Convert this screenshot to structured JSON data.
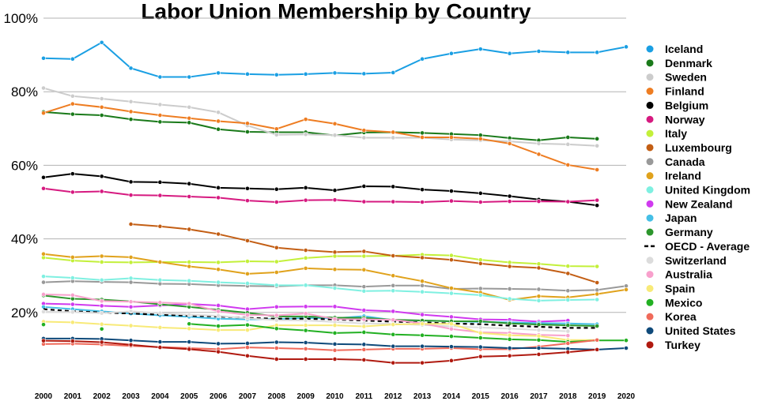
{
  "chart_data": {
    "type": "line",
    "title": "Labor Union Membership by Country",
    "xlabel": "",
    "ylabel": "",
    "x": [
      2000,
      2001,
      2002,
      2003,
      2004,
      2005,
      2006,
      2007,
      2008,
      2009,
      2010,
      2011,
      2012,
      2013,
      2014,
      2015,
      2016,
      2017,
      2018,
      2019,
      2020
    ],
    "xlim": [
      2000,
      2020
    ],
    "ylim": [
      0,
      100
    ],
    "yticks": [
      20,
      40,
      60,
      80,
      100
    ],
    "ytick_labels": [
      "20%",
      "40%",
      "60%",
      "80%",
      "100%"
    ],
    "grid": true,
    "legend": "right",
    "series": [
      {
        "name": "Iceland",
        "color": "#1a9fe3",
        "values": [
          89.1,
          88.9,
          93.4,
          86.4,
          84.0,
          84.0,
          85.1,
          84.8,
          84.6,
          84.8,
          85.1,
          84.9,
          85.2,
          88.9,
          90.4,
          91.6,
          90.4,
          91.0,
          90.7,
          90.7,
          92.2
        ]
      },
      {
        "name": "Denmark",
        "color": "#1a7a1a",
        "values": [
          74.5,
          73.9,
          73.6,
          72.5,
          71.8,
          71.6,
          69.8,
          69.1,
          69.0,
          69.0,
          68.1,
          68.9,
          69.0,
          68.8,
          68.5,
          68.2,
          67.4,
          66.8,
          67.6,
          67.2,
          null
        ]
      },
      {
        "name": "Sweden",
        "color": "#cccccc",
        "values": [
          81.0,
          78.8,
          78.1,
          77.3,
          76.5,
          75.8,
          74.4,
          70.8,
          68.3,
          68.4,
          68.2,
          67.5,
          67.5,
          67.5,
          67.0,
          66.8,
          66.5,
          65.9,
          65.7,
          65.3,
          null
        ]
      },
      {
        "name": "Finland",
        "color": "#ee7d22",
        "values": [
          74.2,
          76.7,
          75.8,
          74.6,
          73.6,
          72.8,
          72.0,
          71.4,
          69.9,
          72.5,
          71.3,
          69.5,
          69.0,
          67.6,
          67.6,
          67.2,
          65.9,
          63.0,
          60.1,
          58.8,
          null
        ]
      },
      {
        "name": "Belgium",
        "color": "#000000",
        "values": [
          56.7,
          57.7,
          57.0,
          55.5,
          55.4,
          55.0,
          53.9,
          53.7,
          53.5,
          53.9,
          53.2,
          54.3,
          54.2,
          53.4,
          53.0,
          52.4,
          51.6,
          50.7,
          50.1,
          49.1,
          null
        ]
      },
      {
        "name": "Norway",
        "color": "#d61a80",
        "values": [
          53.7,
          52.7,
          52.9,
          51.9,
          51.8,
          51.5,
          51.2,
          50.4,
          50.0,
          50.5,
          50.6,
          50.1,
          50.1,
          50.0,
          50.3,
          50.0,
          50.2,
          50.2,
          50.1,
          50.5,
          null
        ]
      },
      {
        "name": "Italy",
        "color": "#c3f03a",
        "values": [
          34.9,
          34.1,
          33.7,
          33.6,
          33.7,
          33.7,
          33.6,
          33.9,
          33.8,
          34.8,
          35.3,
          35.3,
          35.4,
          35.7,
          35.5,
          34.3,
          33.6,
          33.2,
          32.6,
          32.5,
          null
        ]
      },
      {
        "name": "Luxembourg",
        "color": "#c35e14",
        "values": [
          null,
          null,
          null,
          44.0,
          43.4,
          42.6,
          41.3,
          39.5,
          37.6,
          36.9,
          36.4,
          36.6,
          35.4,
          34.9,
          34.3,
          33.3,
          32.5,
          32.1,
          30.6,
          28.1,
          null
        ]
      },
      {
        "name": "Canada",
        "color": "#999999",
        "values": [
          28.2,
          28.5,
          28.3,
          28.2,
          27.8,
          27.7,
          27.4,
          27.2,
          27.1,
          27.4,
          27.4,
          27.0,
          27.3,
          27.3,
          26.4,
          26.5,
          26.4,
          26.3,
          25.9,
          26.1,
          27.2
        ]
      },
      {
        "name": "Ireland",
        "color": "#e0a21c",
        "values": [
          35.9,
          35.0,
          35.3,
          35.0,
          33.7,
          32.5,
          31.7,
          30.5,
          30.9,
          32.0,
          31.7,
          31.6,
          30.0,
          28.5,
          26.6,
          25.4,
          23.4,
          24.4,
          24.1,
          25.0,
          26.2
        ]
      },
      {
        "name": "United Kingdom",
        "color": "#7ff0e1",
        "values": [
          29.8,
          29.4,
          28.8,
          29.3,
          28.8,
          28.6,
          28.2,
          27.9,
          27.4,
          27.4,
          26.6,
          25.8,
          25.9,
          25.6,
          25.2,
          24.7,
          23.7,
          23.2,
          23.4,
          23.5,
          null
        ]
      },
      {
        "name": "New Zealand",
        "color": "#d03aef",
        "values": [
          22.4,
          22.2,
          21.8,
          21.5,
          21.9,
          22.3,
          21.9,
          20.9,
          21.5,
          21.6,
          21.6,
          20.6,
          20.3,
          19.4,
          18.8,
          18.1,
          18.0,
          17.5,
          17.8,
          null,
          null
        ]
      },
      {
        "name": "Japan",
        "color": "#45bfe6",
        "values": [
          21.5,
          20.9,
          20.3,
          19.7,
          19.2,
          18.8,
          18.3,
          18.1,
          18.2,
          18.5,
          18.4,
          19.0,
          17.9,
          17.8,
          17.6,
          17.4,
          17.3,
          17.1,
          17.0,
          16.8,
          null
        ]
      },
      {
        "name": "Germany",
        "color": "#2c962c",
        "values": [
          24.6,
          23.7,
          23.5,
          23.0,
          22.2,
          21.5,
          20.7,
          19.9,
          18.9,
          18.9,
          18.6,
          18.5,
          18.0,
          17.8,
          17.6,
          17.6,
          17.0,
          16.7,
          16.5,
          16.3,
          null
        ]
      },
      {
        "name": "OECD - Average",
        "color": "#000000",
        "dashed": true,
        "values": [
          20.9,
          20.3,
          20.0,
          19.7,
          19.4,
          19.1,
          18.9,
          18.5,
          18.3,
          18.3,
          18.1,
          17.8,
          17.5,
          17.3,
          17.0,
          16.8,
          16.4,
          16.1,
          15.8,
          15.8,
          null
        ]
      },
      {
        "name": "Switzerland",
        "color": "#dcdcdc",
        "values": [
          20.2,
          20.1,
          19.8,
          20.3,
          19.8,
          19.4,
          19.1,
          18.4,
          17.9,
          17.8,
          17.4,
          17.0,
          16.9,
          16.6,
          16.2,
          15.9,
          15.6,
          15.2,
          14.9,
          null,
          null
        ]
      },
      {
        "name": "Australia",
        "color": "#f8a0cc",
        "values": [
          24.9,
          24.7,
          23.1,
          22.9,
          22.7,
          22.4,
          20.3,
          19.3,
          19.2,
          19.7,
          18.2,
          18.1,
          18.0,
          17.0,
          15.5,
          14.6,
          14.4,
          13.9,
          13.7,
          null,
          null
        ]
      },
      {
        "name": "Spain",
        "color": "#f8ea78",
        "values": [
          17.5,
          17.3,
          16.8,
          16.4,
          15.9,
          15.6,
          15.2,
          15.2,
          16.5,
          16.5,
          16.5,
          16.2,
          16.7,
          16.9,
          16.9,
          14.4,
          13.8,
          13.6,
          12.5,
          12.5,
          null
        ]
      },
      {
        "name": "Mexico",
        "color": "#22b022",
        "values": [
          16.7,
          null,
          15.5,
          null,
          null,
          16.9,
          16.3,
          16.6,
          15.6,
          15.1,
          14.4,
          14.6,
          14.0,
          13.8,
          13.5,
          13.1,
          12.7,
          12.5,
          12.0,
          12.4,
          12.4
        ]
      },
      {
        "name": "Korea",
        "color": "#f06a5a",
        "values": [
          11.4,
          11.5,
          11.3,
          10.9,
          10.6,
          10.3,
          10.0,
          10.5,
          10.3,
          10.1,
          9.7,
          9.9,
          10.1,
          10.1,
          10.3,
          10.0,
          10.0,
          10.7,
          11.6,
          12.5,
          null
        ]
      },
      {
        "name": "United States",
        "color": "#0f4a7a",
        "values": [
          12.9,
          12.9,
          12.8,
          12.4,
          12.0,
          12.0,
          11.5,
          11.6,
          11.9,
          11.8,
          11.4,
          11.3,
          10.8,
          10.8,
          10.7,
          10.6,
          10.3,
          10.3,
          10.1,
          9.9,
          10.3
        ]
      },
      {
        "name": "Turkey",
        "color": "#b01a10",
        "values": [
          12.3,
          12.2,
          11.9,
          11.2,
          10.5,
          10.0,
          9.3,
          8.2,
          7.3,
          7.3,
          7.3,
          7.1,
          6.3,
          6.3,
          6.9,
          8.0,
          8.2,
          8.6,
          9.2,
          9.9,
          null
        ]
      }
    ]
  }
}
